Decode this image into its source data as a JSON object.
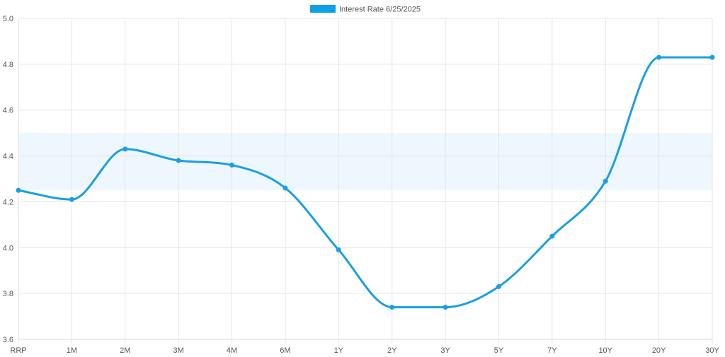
{
  "chart_data": {
    "type": "line",
    "legend": {
      "label": "Interest Rate 6/25/2025",
      "color": "#0ea0e8",
      "placement": "top-center"
    },
    "categories": [
      "RRP",
      "1M",
      "2M",
      "3M",
      "4M",
      "6M",
      "1Y",
      "2Y",
      "3Y",
      "5Y",
      "7Y",
      "10Y",
      "20Y",
      "30Y"
    ],
    "series": [
      {
        "name": "Interest Rate 6/25/2025",
        "color": "#1a9fe3",
        "values": [
          4.25,
          4.21,
          4.43,
          4.38,
          4.36,
          4.26,
          3.99,
          3.74,
          3.74,
          3.83,
          4.05,
          4.29,
          4.83,
          4.83
        ]
      }
    ],
    "band": {
      "from": 4.25,
      "to": 4.5,
      "color": "#eef7fd"
    },
    "ylim": [
      3.6,
      5.0
    ],
    "yticks": [
      "3.6",
      "3.8",
      "4.0",
      "4.2",
      "4.4",
      "4.6",
      "4.8",
      "5.0"
    ],
    "grid": true,
    "title": "",
    "xlabel": "",
    "ylabel": ""
  }
}
